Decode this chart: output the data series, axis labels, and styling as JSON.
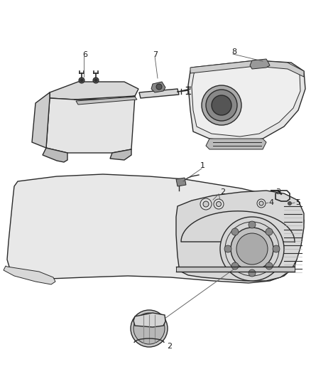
{
  "background_color": "#ffffff",
  "figsize": [
    4.38,
    5.33
  ],
  "dpi": 100,
  "line_color": "#2a2a2a",
  "label_color": "#1a1a1a",
  "fill_light": "#e8e8e8",
  "fill_mid": "#d2d2d2",
  "fill_dark": "#b0b0b0"
}
